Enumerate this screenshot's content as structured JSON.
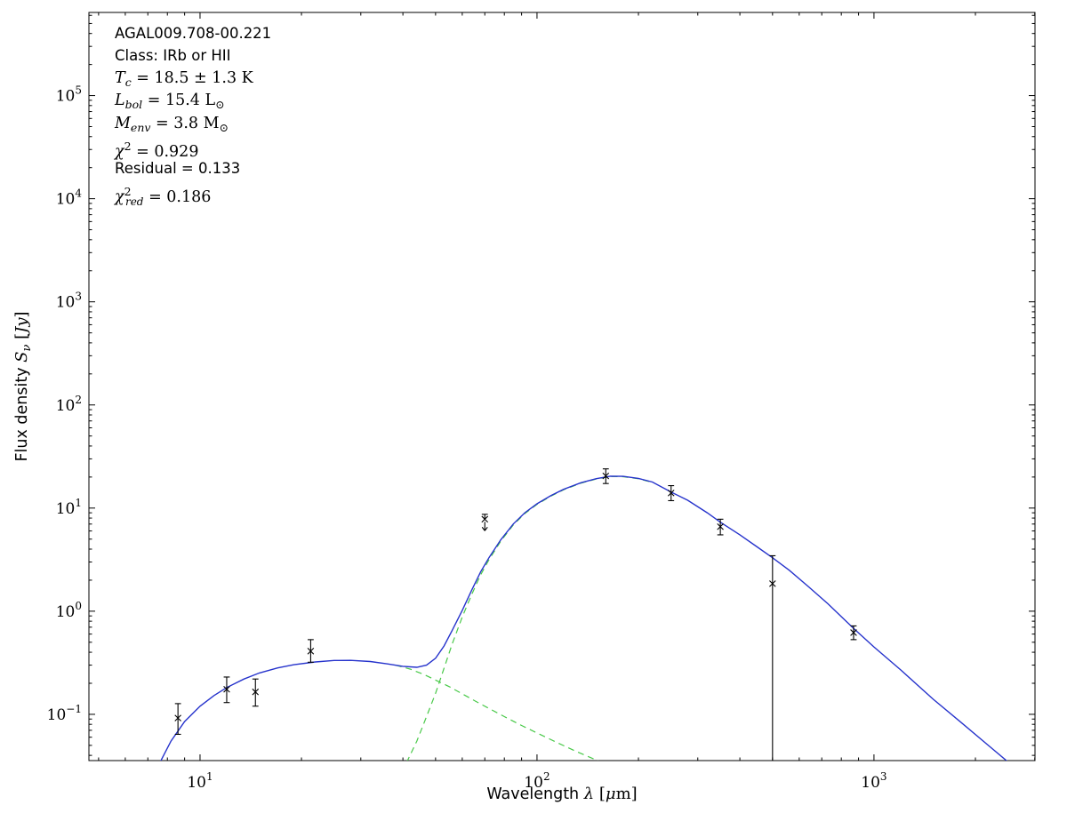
{
  "figure": {
    "background": "#ffffff",
    "frame_color": "#000000"
  },
  "source": {
    "name": "AGAL009.708-00.221",
    "class": "IRb or HII",
    "T_c_K": "18.5 ± 1.3",
    "L_bol_Lsun": 15.4,
    "M_env_Msun": 3.8,
    "chi2": 0.929,
    "residual": 0.133,
    "chi2_red": 0.186
  },
  "chart_data": {
    "type": "line",
    "subtype": "sed-fit-with-photometry",
    "x_scale": "log",
    "y_scale": "log",
    "xlim": [
      4.68,
      3005
    ],
    "ylim": [
      0.0356,
      640000
    ],
    "x_major_ticks": [
      10,
      100,
      1000
    ],
    "y_major_ticks": [
      0.1,
      1,
      10,
      100,
      1000,
      10000,
      100000
    ],
    "grid": false,
    "legend": "none",
    "xlabel_text": "Wavelength λ [μm]",
    "ylabel_text": "Flux density S_ν [Jy]",
    "xlabel_segments": [
      {
        "t": "Wavelength ",
        "s": "sans"
      },
      {
        "t": "λ",
        "s": "i"
      },
      {
        "t": " [",
        "s": "r"
      },
      {
        "t": "μ",
        "s": "i"
      },
      {
        "t": "m]",
        "s": "r"
      }
    ],
    "ylabel_segments": [
      {
        "t": "Flux density ",
        "s": "sans"
      },
      {
        "t": "S",
        "s": "i"
      },
      {
        "t": "ν",
        "s": "sub"
      },
      {
        "t": " [",
        "s": "r"
      },
      {
        "t": "Jy",
        "s": "i"
      },
      {
        "t": "]",
        "s": "r"
      }
    ],
    "series": [
      {
        "name": "total-fit",
        "color": "#2633cc",
        "dash": "solid",
        "width": 1.4,
        "points": [
          [
            7.6,
            0.034
          ],
          [
            8.2,
            0.055
          ],
          [
            9,
            0.085
          ],
          [
            10,
            0.12
          ],
          [
            11,
            0.152
          ],
          [
            12,
            0.182
          ],
          [
            13.5,
            0.22
          ],
          [
            15,
            0.252
          ],
          [
            17,
            0.282
          ],
          [
            19,
            0.303
          ],
          [
            22,
            0.322
          ],
          [
            25,
            0.333
          ],
          [
            28,
            0.334
          ],
          [
            32,
            0.325
          ],
          [
            36,
            0.308
          ],
          [
            40,
            0.292
          ],
          [
            44,
            0.286
          ],
          [
            47,
            0.3
          ],
          [
            50,
            0.35
          ],
          [
            53,
            0.46
          ],
          [
            56,
            0.65
          ],
          [
            60,
            1.02
          ],
          [
            64,
            1.6
          ],
          [
            68,
            2.4
          ],
          [
            72,
            3.3
          ],
          [
            78,
            4.9
          ],
          [
            85,
            7.0
          ],
          [
            92,
            9.0
          ],
          [
            100,
            11.0
          ],
          [
            110,
            13.2
          ],
          [
            120,
            15.2
          ],
          [
            135,
            17.6
          ],
          [
            150,
            19.3
          ],
          [
            165,
            20.4
          ],
          [
            180,
            20.3
          ],
          [
            200,
            19.4
          ],
          [
            220,
            17.9
          ],
          [
            250,
            14.3
          ],
          [
            280,
            11.9
          ],
          [
            320,
            9.0
          ],
          [
            350,
            7.3
          ],
          [
            400,
            5.5
          ],
          [
            450,
            4.2
          ],
          [
            500,
            3.3
          ],
          [
            560,
            2.5
          ],
          [
            640,
            1.72
          ],
          [
            730,
            1.18
          ],
          [
            870,
            0.68
          ],
          [
            1000,
            0.45
          ],
          [
            1200,
            0.27
          ],
          [
            1500,
            0.14
          ],
          [
            1800,
            0.085
          ],
          [
            2200,
            0.049
          ],
          [
            2600,
            0.031
          ],
          [
            3000,
            0.021
          ]
        ]
      },
      {
        "name": "cold-component",
        "color": "#49c949",
        "dash": "dashed",
        "width": 1.2,
        "points": [
          [
            41,
            0.034
          ],
          [
            44,
            0.055
          ],
          [
            47,
            0.095
          ],
          [
            50,
            0.16
          ],
          [
            53,
            0.28
          ],
          [
            56,
            0.48
          ],
          [
            60,
            0.88
          ],
          [
            64,
            1.45
          ],
          [
            68,
            2.25
          ],
          [
            72,
            3.15
          ],
          [
            78,
            4.75
          ],
          [
            85,
            6.85
          ],
          [
            92,
            8.85
          ],
          [
            100,
            10.85
          ],
          [
            110,
            13.05
          ],
          [
            120,
            15.05
          ],
          [
            135,
            17.45
          ],
          [
            150,
            19.15
          ],
          [
            165,
            20.25
          ],
          [
            180,
            20.15
          ],
          [
            200,
            19.25
          ],
          [
            220,
            17.75
          ]
        ]
      },
      {
        "name": "warm-component",
        "color": "#49c949",
        "dash": "dashed",
        "width": 1.2,
        "points": [
          [
            38,
            0.3
          ],
          [
            42,
            0.275
          ],
          [
            46,
            0.245
          ],
          [
            50,
            0.215
          ],
          [
            55,
            0.185
          ],
          [
            60,
            0.158
          ],
          [
            66,
            0.133
          ],
          [
            72,
            0.114
          ],
          [
            80,
            0.095
          ],
          [
            90,
            0.078
          ],
          [
            100,
            0.066
          ],
          [
            115,
            0.053
          ],
          [
            130,
            0.044
          ],
          [
            150,
            0.036
          ],
          [
            165,
            0.03
          ]
        ]
      }
    ],
    "data_points": [
      {
        "wavelength_um": 8.6,
        "flux_jy": 0.092,
        "err_plus": 0.035,
        "err_minus": 0.028
      },
      {
        "wavelength_um": 12,
        "flux_jy": 0.175,
        "err_plus": 0.055,
        "err_minus": 0.045
      },
      {
        "wavelength_um": 14.6,
        "flux_jy": 0.165,
        "err_plus": 0.055,
        "err_minus": 0.045
      },
      {
        "wavelength_um": 21.3,
        "flux_jy": 0.41,
        "err_plus": 0.12,
        "err_minus": 0.09
      },
      {
        "wavelength_um": 70,
        "flux_jy": 7.8,
        "err_plus": 0.9,
        "upper_limit_arrow": true
      },
      {
        "wavelength_um": 160,
        "flux_jy": 20.5,
        "err_plus": 3.5,
        "err_minus": 3.2
      },
      {
        "wavelength_um": 250,
        "flux_jy": 14.0,
        "err_plus": 2.5,
        "err_minus": 2.2
      },
      {
        "wavelength_um": 350,
        "flux_jy": 6.6,
        "err_plus": 1.2,
        "err_minus": 1.1
      },
      {
        "wavelength_um": 500,
        "flux_jy": 1.85,
        "err_plus": 1.6,
        "err_minus_to_axis": true
      },
      {
        "wavelength_um": 870,
        "flux_jy": 0.62,
        "err_plus": 0.1,
        "err_minus": 0.09
      }
    ],
    "annotations": [
      {
        "segments": [
          {
            "t": "AGAL009.708-00.221",
            "s": "sans"
          }
        ]
      },
      {
        "segments": [
          {
            "t": "Class: IRb or HII",
            "s": "sans"
          }
        ]
      },
      {
        "segments": [
          {
            "t": "T",
            "s": "i"
          },
          {
            "t": "c",
            "s": "sub"
          },
          {
            "t": " = 18.5 ± 1.3 K",
            "s": "r"
          }
        ]
      },
      {
        "segments": [
          {
            "t": "L",
            "s": "i"
          },
          {
            "t": "bol",
            "s": "sub"
          },
          {
            "t": " = 15.4 L",
            "s": "r"
          },
          {
            "t": "⊙",
            "s": "subr"
          }
        ]
      },
      {
        "segments": [
          {
            "t": "M",
            "s": "i"
          },
          {
            "t": "env",
            "s": "sub"
          },
          {
            "t": " = 3.8 M",
            "s": "r"
          },
          {
            "t": "⊙",
            "s": "subr"
          }
        ]
      },
      {
        "segments": [
          {
            "t": "χ",
            "s": "i"
          },
          {
            "t": "2",
            "s": "sup"
          },
          {
            "t": " = 0.929",
            "s": "r"
          }
        ]
      },
      {
        "segments": [
          {
            "t": "Residual = 0.133",
            "s": "sans"
          }
        ]
      },
      {
        "segments": [
          {
            "t": "χ",
            "s": "i"
          },
          {
            "t": "2",
            "s": "sup"
          },
          {
            "t": "red",
            "s": "subback"
          },
          {
            "t": " = 0.186",
            "s": "r"
          }
        ]
      }
    ]
  }
}
